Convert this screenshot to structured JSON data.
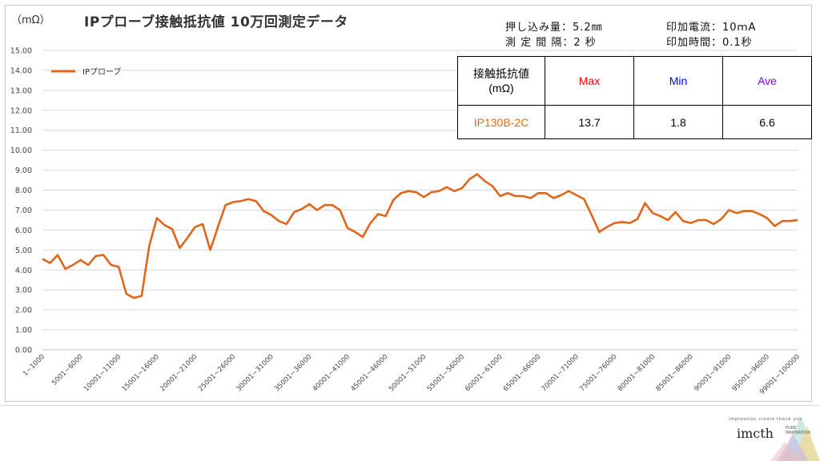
{
  "header": {
    "unit": "（mΩ）",
    "title": "IPプローブ接触抵抗値  10万回測定データ"
  },
  "conditions": {
    "push_amount": "押し込み量：5.2㎜",
    "interval": "測 定 間 隔：2  秒",
    "current": "印加電流：10ｍA",
    "time": "印加時間：0.1秒"
  },
  "summary_table": {
    "header_label_line1": "接触抵抗値",
    "header_label_line2": "(mΩ)",
    "col_max": "Max",
    "col_min": "Min",
    "col_ave": "Ave",
    "row_name": "IP130B-2C",
    "max": "13.7",
    "min": "1.8",
    "ave": "6.6",
    "colors": {
      "max": "#ff0000",
      "min": "#0000ff",
      "ave": "#8000ff",
      "row_name": "#e46c0a"
    }
  },
  "chart_data": {
    "type": "line",
    "title": "",
    "xlabel": "",
    "ylabel": "",
    "ylim": [
      0,
      15
    ],
    "y_ticks": [
      "0.00",
      "1.00",
      "2.00",
      "3.00",
      "4.00",
      "5.00",
      "6.00",
      "7.00",
      "8.00",
      "9.00",
      "10.00",
      "11.00",
      "12.00",
      "13.00",
      "14.00",
      "15.00"
    ],
    "grid": true,
    "legend_position": "top-left",
    "x_tick_labels": [
      "1~1000",
      "5001~6000",
      "10001~11000",
      "15001~16000",
      "20001~21000",
      "25001~26000",
      "30001~31000",
      "35001~36000",
      "40001~41000",
      "45001~46000",
      "50001~51000",
      "55001~56000",
      "60001~61000",
      "65001~66000",
      "70001~71000",
      "75001~76000",
      "80001~81000",
      "85001~86000",
      "90001~91000",
      "95001~96000",
      "99001~100000"
    ],
    "series": [
      {
        "name": "IPプローブ",
        "color": "#e0661c",
        "values": [
          4.55,
          4.35,
          4.75,
          4.05,
          4.25,
          4.5,
          4.25,
          4.7,
          4.75,
          4.25,
          4.15,
          2.8,
          2.6,
          2.7,
          5.2,
          6.6,
          6.25,
          6.05,
          5.1,
          5.6,
          6.15,
          6.3,
          5.0,
          6.15,
          7.25,
          7.4,
          7.45,
          7.55,
          7.45,
          6.95,
          6.75,
          6.45,
          6.3,
          6.9,
          7.05,
          7.3,
          7.0,
          7.25,
          7.25,
          7.0,
          6.1,
          5.9,
          5.65,
          6.35,
          6.8,
          6.7,
          7.5,
          7.85,
          7.95,
          7.9,
          7.65,
          7.9,
          7.95,
          8.15,
          7.95,
          8.1,
          8.55,
          8.8,
          8.45,
          8.2,
          7.7,
          7.85,
          7.7,
          7.7,
          7.6,
          7.85,
          7.85,
          7.6,
          7.75,
          7.95,
          7.75,
          7.55,
          6.75,
          5.9,
          6.15,
          6.35,
          6.4,
          6.35,
          6.55,
          7.35,
          6.85,
          6.7,
          6.5,
          6.9,
          6.45,
          6.35,
          6.5,
          6.5,
          6.3,
          6.55,
          7.0,
          6.85,
          6.95,
          6.95,
          6.8,
          6.6,
          6.2,
          6.45,
          6.45,
          6.5
        ]
      }
    ]
  },
  "logo": {
    "tagline": "impression create thank you",
    "brand": "imcth",
    "pure": "PURE",
    "innovation": "INNOVATION"
  }
}
